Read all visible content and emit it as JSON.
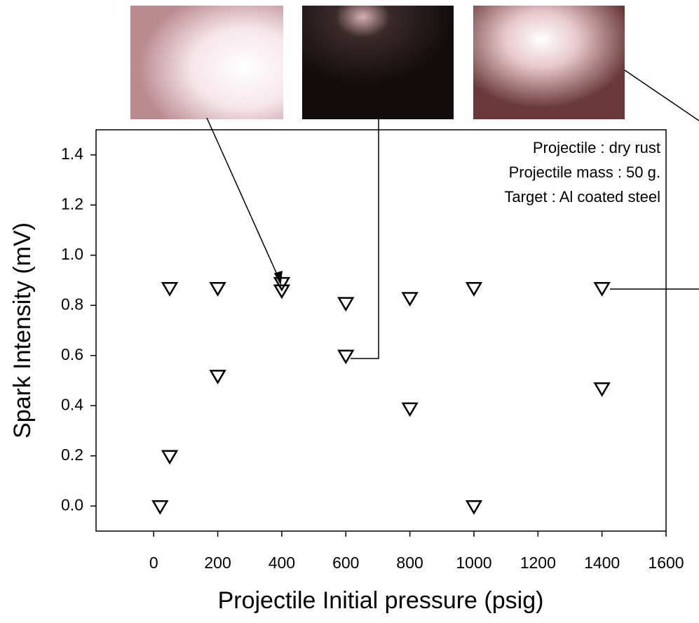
{
  "chart_data": {
    "type": "scatter",
    "xlabel": "Projectile Initial pressure (psig)",
    "ylabel": "Spark Intensity (mV)",
    "annotations": [
      "Projectile : dry rust",
      "Projectile mass : 50 g.",
      "Target : Al coated steel"
    ],
    "x": [
      20,
      50,
      50,
      200,
      200,
      400,
      400,
      600,
      600,
      800,
      800,
      1000,
      1000,
      1400,
      1400
    ],
    "values": [
      0.0,
      0.2,
      0.87,
      0.87,
      0.52,
      0.89,
      0.86,
      0.81,
      0.6,
      0.83,
      0.39,
      0.87,
      0.0,
      0.87,
      0.47
    ],
    "color": "#000000",
    "xlim": [
      -180,
      1600
    ],
    "xticks": [
      0,
      200,
      400,
      600,
      800,
      1000,
      1200,
      1400,
      1600
    ],
    "ylim": [
      -0.1,
      1.5
    ],
    "yticks": [
      {
        "value": 0,
        "label": "0.0"
      },
      0.2,
      0.4,
      0.6,
      0.8,
      {
        "value": 1,
        "label": "1.0"
      },
      1.2,
      1.4
    ]
  }
}
